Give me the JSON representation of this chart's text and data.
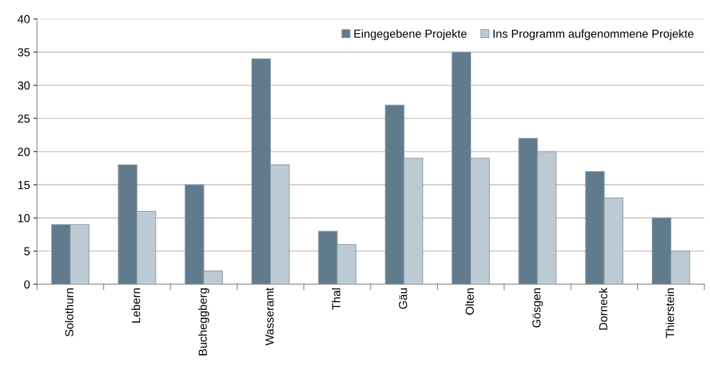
{
  "chart_data": {
    "type": "bar",
    "categories": [
      "Solothurn",
      "Lebern",
      "Bucheggberg",
      "Wasseramt",
      "Thal",
      "Gäu",
      "Olten",
      "Gösgen",
      "Dorneck",
      "Thierstein"
    ],
    "series": [
      {
        "name": "Eingegebene Projekte",
        "color": "#5f7b8c",
        "values": [
          9,
          18,
          15,
          34,
          8,
          27,
          35,
          22,
          17,
          10
        ]
      },
      {
        "name": "Ins Programm aufgenommene Projekte",
        "color": "#bccbd3",
        "values": [
          9,
          11,
          2,
          18,
          6,
          19,
          19,
          20,
          13,
          5
        ]
      }
    ],
    "ylim": [
      0,
      40
    ],
    "yticks": [
      0,
      5,
      10,
      15,
      20,
      25,
      30,
      35,
      40
    ],
    "grid": "y",
    "legend": "top right"
  }
}
